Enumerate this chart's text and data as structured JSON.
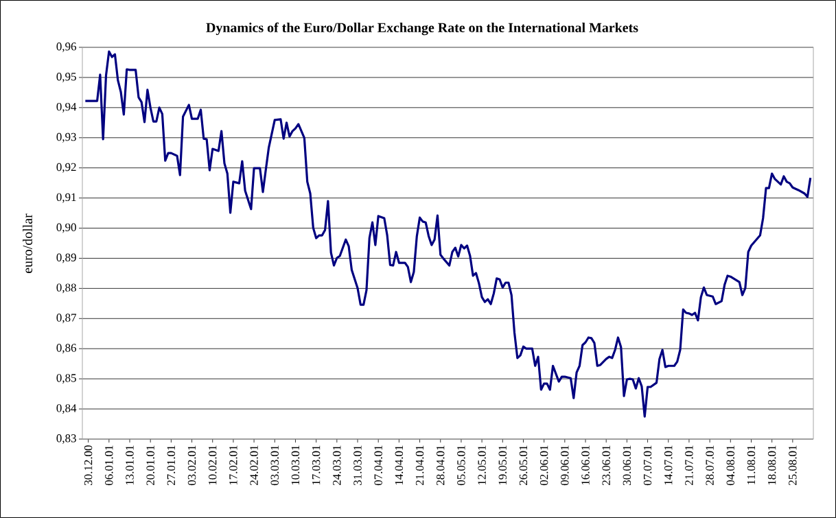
{
  "chart_data": {
    "type": "line",
    "title": "Dynamics of the Euro/Dollar Exchange Rate on the International Markets",
    "ylabel": "euro/dollar",
    "color": "#000080",
    "grid": "y",
    "x": [
      "2000-12-29",
      "2001-01-02",
      "2001-01-03",
      "2001-01-04",
      "2001-01-05",
      "2001-01-06",
      "2001-01-07",
      "2001-01-08",
      "2001-01-09",
      "2001-01-10",
      "2001-01-11",
      "2001-01-12",
      "2001-01-13",
      "2001-01-15",
      "2001-01-16",
      "2001-01-17",
      "2001-01-18",
      "2001-01-19",
      "2001-01-20",
      "2001-01-21",
      "2001-01-22",
      "2001-01-23",
      "2001-01-24",
      "2001-01-25",
      "2001-01-26",
      "2001-01-27",
      "2001-01-29",
      "2001-01-30",
      "2001-01-31",
      "2001-02-02",
      "2001-02-03",
      "2001-02-05",
      "2001-02-06",
      "2001-02-07",
      "2001-02-08",
      "2001-02-09",
      "2001-02-10",
      "2001-02-12",
      "2001-02-13",
      "2001-02-14",
      "2001-02-15",
      "2001-02-16",
      "2001-02-17",
      "2001-02-19",
      "2001-02-20",
      "2001-02-21",
      "2001-02-23",
      "2001-02-24",
      "2001-02-26",
      "2001-02-27",
      "2001-02-28",
      "2001-03-01",
      "2001-03-03",
      "2001-03-05",
      "2001-03-06",
      "2001-03-07",
      "2001-03-08",
      "2001-03-09",
      "2001-03-10",
      "2001-03-11",
      "2001-03-13",
      "2001-03-14",
      "2001-03-15",
      "2001-03-16",
      "2001-03-17",
      "2001-03-18",
      "2001-03-19",
      "2001-03-20",
      "2001-03-21",
      "2001-03-22",
      "2001-03-23",
      "2001-03-24",
      "2001-03-25",
      "2001-03-27",
      "2001-03-28",
      "2001-03-29",
      "2001-03-31",
      "2001-04-01",
      "2001-04-02",
      "2001-04-03",
      "2001-04-04",
      "2001-04-05",
      "2001-04-06",
      "2001-04-07",
      "2001-04-09",
      "2001-04-10",
      "2001-04-11",
      "2001-04-12",
      "2001-04-13",
      "2001-04-14",
      "2001-04-16",
      "2001-04-17",
      "2001-04-18",
      "2001-04-19",
      "2001-04-20",
      "2001-04-21",
      "2001-04-22",
      "2001-04-23",
      "2001-04-24",
      "2001-04-25",
      "2001-04-26",
      "2001-04-27",
      "2001-04-28",
      "2001-04-29",
      "2001-05-01",
      "2001-05-02",
      "2001-05-03",
      "2001-05-04",
      "2001-05-05",
      "2001-05-06",
      "2001-05-07",
      "2001-05-08",
      "2001-05-09",
      "2001-05-10",
      "2001-05-11",
      "2001-05-12",
      "2001-05-13",
      "2001-05-14",
      "2001-05-15",
      "2001-05-16",
      "2001-05-17",
      "2001-05-18",
      "2001-05-19",
      "2001-05-20",
      "2001-05-21",
      "2001-05-22",
      "2001-05-23",
      "2001-05-24",
      "2001-05-25",
      "2001-05-26",
      "2001-05-27",
      "2001-05-29",
      "2001-05-30",
      "2001-05-31",
      "2001-06-01",
      "2001-06-02",
      "2001-06-03",
      "2001-06-04",
      "2001-06-05",
      "2001-06-07",
      "2001-06-08",
      "2001-06-09",
      "2001-06-11",
      "2001-06-12",
      "2001-06-13",
      "2001-06-14",
      "2001-06-15",
      "2001-06-16",
      "2001-06-17",
      "2001-06-18",
      "2001-06-19",
      "2001-06-20",
      "2001-06-21",
      "2001-06-23",
      "2001-06-24",
      "2001-06-25",
      "2001-06-26",
      "2001-06-27",
      "2001-06-28",
      "2001-06-29",
      "2001-06-30",
      "2001-07-01",
      "2001-07-02",
      "2001-07-03",
      "2001-07-04",
      "2001-07-05",
      "2001-07-06",
      "2001-07-07",
      "2001-07-08",
      "2001-07-10",
      "2001-07-11",
      "2001-07-12",
      "2001-07-13",
      "2001-07-14",
      "2001-07-16",
      "2001-07-17",
      "2001-07-18",
      "2001-07-19",
      "2001-07-20",
      "2001-07-21",
      "2001-07-22",
      "2001-07-23",
      "2001-07-24",
      "2001-07-25",
      "2001-07-26",
      "2001-07-27",
      "2001-07-29",
      "2001-07-30",
      "2001-08-01",
      "2001-08-02",
      "2001-08-03",
      "2001-08-04",
      "2001-08-07",
      "2001-08-08",
      "2001-08-09",
      "2001-08-10",
      "2001-08-11",
      "2001-08-14",
      "2001-08-15",
      "2001-08-16",
      "2001-08-17",
      "2001-08-18",
      "2001-08-19",
      "2001-08-21",
      "2001-08-22",
      "2001-08-23",
      "2001-08-24",
      "2001-08-25",
      "2001-08-27",
      "2001-08-29",
      "2001-08-30",
      "2001-08-31"
    ],
    "values": [
      0.9422,
      0.9422,
      0.9509,
      0.9295,
      0.9507,
      0.9586,
      0.9568,
      0.9577,
      0.9491,
      0.9452,
      0.9377,
      0.9527,
      0.9525,
      0.9525,
      0.9434,
      0.9418,
      0.9352,
      0.9459,
      0.94,
      0.9354,
      0.9354,
      0.94,
      0.9379,
      0.9224,
      0.9249,
      0.9249,
      0.924,
      0.9176,
      0.937,
      0.9409,
      0.9363,
      0.9363,
      0.9393,
      0.9297,
      0.9295,
      0.9192,
      0.9263,
      0.9256,
      0.9322,
      0.9215,
      0.9181,
      0.9051,
      0.9154,
      0.9149,
      0.9222,
      0.9124,
      0.9063,
      0.9199,
      0.9199,
      0.912,
      0.9195,
      0.9268,
      0.9359,
      0.9361,
      0.9297,
      0.935,
      0.9304,
      0.9322,
      0.9331,
      0.9345,
      0.9299,
      0.9154,
      0.9115,
      0.9001,
      0.8967,
      0.8976,
      0.8976,
      0.8994,
      0.909,
      0.8919,
      0.8876,
      0.8901,
      0.8908,
      0.8962,
      0.894,
      0.8862,
      0.8801,
      0.8746,
      0.8746,
      0.8794,
      0.8967,
      0.9019,
      0.8944,
      0.904,
      0.9033,
      0.8976,
      0.8878,
      0.8876,
      0.8921,
      0.8885,
      0.8885,
      0.8871,
      0.8821,
      0.8855,
      0.8972,
      0.9035,
      0.9022,
      0.9019,
      0.8974,
      0.8944,
      0.8962,
      0.9042,
      0.8912,
      0.8899,
      0.8876,
      0.8921,
      0.8935,
      0.8906,
      0.8944,
      0.8933,
      0.8942,
      0.8908,
      0.8842,
      0.8851,
      0.8817,
      0.8771,
      0.8755,
      0.8764,
      0.8748,
      0.8783,
      0.8833,
      0.883,
      0.8803,
      0.8819,
      0.8819,
      0.8778,
      0.8653,
      0.8569,
      0.8578,
      0.8607,
      0.86,
      0.86,
      0.8543,
      0.8573,
      0.8464,
      0.8484,
      0.8484,
      0.8464,
      0.8543,
      0.8491,
      0.8507,
      0.8507,
      0.8502,
      0.8436,
      0.8521,
      0.8543,
      0.8612,
      0.8621,
      0.8637,
      0.8635,
      0.8619,
      0.8543,
      0.8546,
      0.8566,
      0.8573,
      0.8569,
      0.8596,
      0.8637,
      0.8605,
      0.8443,
      0.8498,
      0.85,
      0.8498,
      0.8468,
      0.8502,
      0.8475,
      0.8375,
      0.8473,
      0.8473,
      0.8487,
      0.8566,
      0.8596,
      0.8539,
      0.8543,
      0.8543,
      0.8557,
      0.8596,
      0.873,
      0.8719,
      0.8717,
      0.8712,
      0.8719,
      0.8694,
      0.8771,
      0.8803,
      0.8778,
      0.8773,
      0.8748,
      0.8758,
      0.8812,
      0.8842,
      0.8839,
      0.8821,
      0.8778,
      0.8801,
      0.8921,
      0.8942,
      0.8976,
      0.9033,
      0.9133,
      0.9133,
      0.9181,
      0.9163,
      0.9145,
      0.9172,
      0.9154,
      0.9149,
      0.9135,
      0.9126,
      0.9115,
      0.9104,
      0.9167
    ],
    "xlim": [
      "2000-12-28",
      "2001-09-01"
    ],
    "xticks": [
      {
        "value": "2000-12-30",
        "label": "30.12.00"
      },
      {
        "value": "2001-01-06",
        "label": "06.01.01"
      },
      {
        "value": "2001-01-13",
        "label": "13.01.01"
      },
      {
        "value": "2001-01-20",
        "label": "20.01.01"
      },
      {
        "value": "2001-01-27",
        "label": "27.01.01"
      },
      {
        "value": "2001-02-03",
        "label": "03.02.01"
      },
      {
        "value": "2001-02-10",
        "label": "10.02.01"
      },
      {
        "value": "2001-02-17",
        "label": "17.02.01"
      },
      {
        "value": "2001-02-24",
        "label": "24.02.01"
      },
      {
        "value": "2001-03-03",
        "label": "03.03.01"
      },
      {
        "value": "2001-03-10",
        "label": "10.03.01"
      },
      {
        "value": "2001-03-17",
        "label": "17.03.01"
      },
      {
        "value": "2001-03-24",
        "label": "24.03.01"
      },
      {
        "value": "2001-03-31",
        "label": "31.03.01"
      },
      {
        "value": "2001-04-07",
        "label": "07.04.01"
      },
      {
        "value": "2001-04-14",
        "label": "14.04.01"
      },
      {
        "value": "2001-04-21",
        "label": "21.04.01"
      },
      {
        "value": "2001-04-28",
        "label": "28.04.01"
      },
      {
        "value": "2001-05-05",
        "label": "05.05.01"
      },
      {
        "value": "2001-05-12",
        "label": "12.05.01"
      },
      {
        "value": "2001-05-19",
        "label": "19.05.01"
      },
      {
        "value": "2001-05-26",
        "label": "26.05.01"
      },
      {
        "value": "2001-06-02",
        "label": "02.06.01"
      },
      {
        "value": "2001-06-09",
        "label": "09.06.01"
      },
      {
        "value": "2001-06-16",
        "label": "16.06.01"
      },
      {
        "value": "2001-06-23",
        "label": "23.06.01"
      },
      {
        "value": "2001-06-30",
        "label": "30.06.01"
      },
      {
        "value": "2001-07-07",
        "label": "07.07.01"
      },
      {
        "value": "2001-07-14",
        "label": "14.07.01"
      },
      {
        "value": "2001-07-21",
        "label": "21.07.01"
      },
      {
        "value": "2001-07-28",
        "label": "28.07.01"
      },
      {
        "value": "2001-08-04",
        "label": "04.08.01"
      },
      {
        "value": "2001-08-11",
        "label": "11.08.01"
      },
      {
        "value": "2001-08-18",
        "label": "18.08.01"
      },
      {
        "value": "2001-08-25",
        "label": "25.08.01"
      }
    ],
    "ylim": [
      0.83,
      0.96
    ],
    "yticks": [
      {
        "value": 0.83,
        "label": "0,83"
      },
      {
        "value": 0.84,
        "label": "0,84"
      },
      {
        "value": 0.85,
        "label": "0,85"
      },
      {
        "value": 0.86,
        "label": "0,86"
      },
      {
        "value": 0.87,
        "label": "0,87"
      },
      {
        "value": 0.88,
        "label": "0,88"
      },
      {
        "value": 0.89,
        "label": "0,89"
      },
      {
        "value": 0.9,
        "label": "0,90"
      },
      {
        "value": 0.91,
        "label": "0,91"
      },
      {
        "value": 0.92,
        "label": "0,92"
      },
      {
        "value": 0.93,
        "label": "0,93"
      },
      {
        "value": 0.94,
        "label": "0,94"
      },
      {
        "value": 0.95,
        "label": "0,95"
      },
      {
        "value": 0.96,
        "label": "0,96"
      }
    ]
  }
}
